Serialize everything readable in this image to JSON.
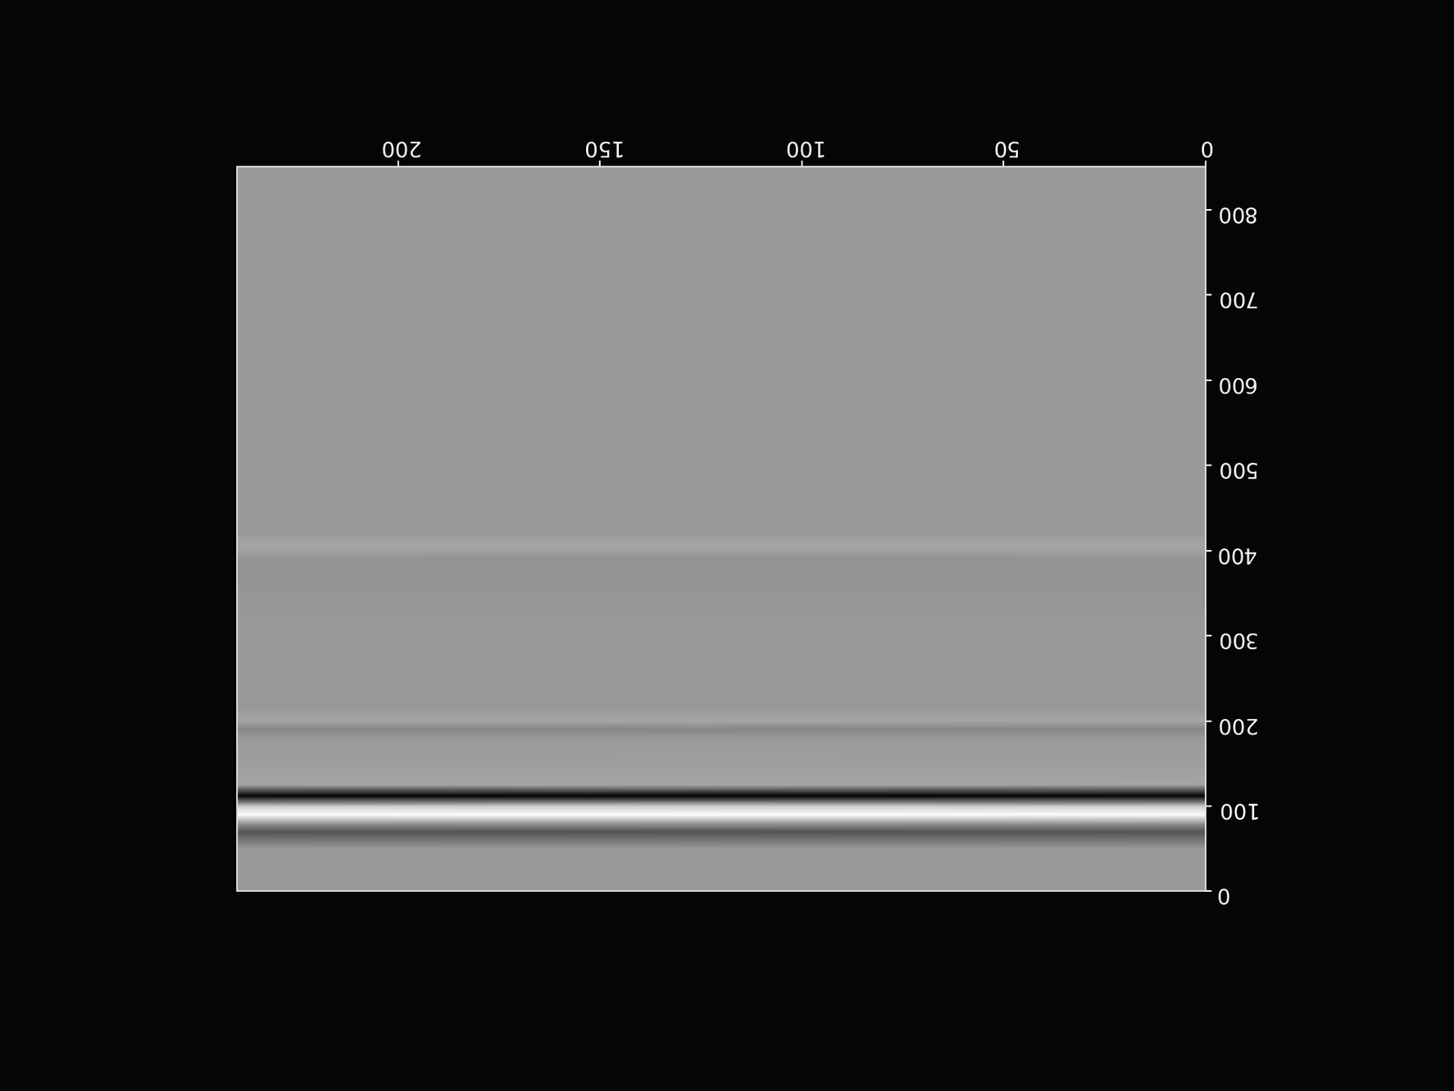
{
  "chart_data": {
    "type": "heatmap",
    "x": [
      0,
      240
    ],
    "y": [
      0,
      50,
      70,
      80,
      90,
      100,
      112,
      125,
      140,
      180,
      190,
      200,
      215,
      300,
      390,
      405,
      420,
      850
    ],
    "cells": [
      [
        0.2,
        0.2
      ],
      [
        0.2,
        0.2
      ],
      [
        -0.35,
        -0.35
      ],
      [
        0.2,
        0.2
      ],
      [
        1.0,
        1.0
      ],
      [
        0.6,
        0.6
      ],
      [
        -1.0,
        -1.0
      ],
      [
        0.3,
        0.3
      ],
      [
        0.25,
        0.25
      ],
      [
        0.2,
        0.2
      ],
      [
        0.05,
        0.05
      ],
      [
        0.3,
        0.3
      ],
      [
        0.2,
        0.2
      ],
      [
        0.2,
        0.2
      ],
      [
        0.15,
        0.15
      ],
      [
        0.3,
        0.3
      ],
      [
        0.2,
        0.2
      ],
      [
        0.2,
        0.2
      ]
    ],
    "color_range": [
      -1,
      1
    ],
    "color": "gray",
    "xlim": [
      0,
      240
    ],
    "xticks": [
      0,
      50,
      100,
      150,
      200
    ],
    "ylim": [
      0,
      850
    ],
    "yticks": [
      0,
      100,
      200,
      300,
      400,
      500,
      600,
      700,
      800
    ]
  }
}
